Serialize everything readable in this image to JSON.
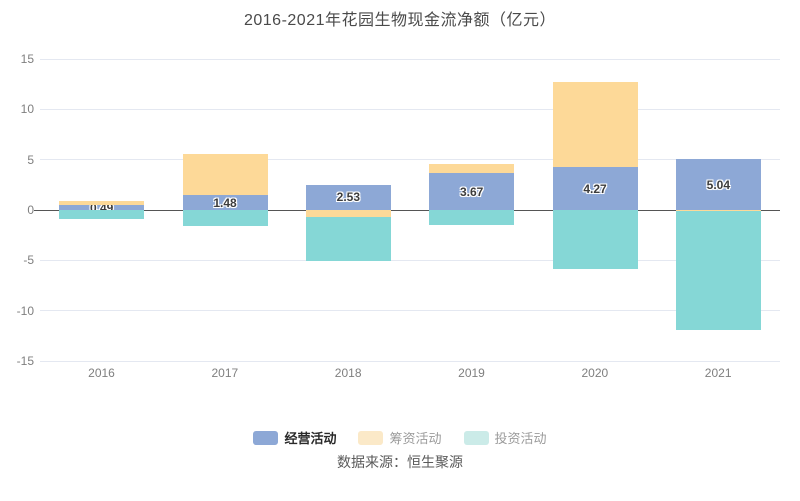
{
  "title": "2016-2021年花园生物现金流净额（亿元）",
  "source": "数据来源：恒生聚源",
  "legend": {
    "items": [
      {
        "key": "operating",
        "label": "经营活动",
        "swatch_color": "#8da8d6",
        "active": true
      },
      {
        "key": "financing",
        "label": "筹资活动",
        "swatch_color": "#fbe9c8",
        "active": false
      },
      {
        "key": "investing",
        "label": "投资活动",
        "swatch_color": "#cbebe8",
        "active": false
      }
    ]
  },
  "chart_data": {
    "type": "bar",
    "stacked": true,
    "title": "2016-2021年花园生物现金流净额（亿元）",
    "categories": [
      "2016",
      "2017",
      "2018",
      "2019",
      "2020",
      "2021"
    ],
    "series": [
      {
        "name": "经营活动",
        "color": "#8da8d6",
        "values": [
          0.49,
          1.48,
          2.53,
          3.67,
          4.27,
          5.04
        ],
        "labels": [
          "0.49",
          "1.48",
          "2.53",
          "3.67",
          "4.27",
          "5.04"
        ]
      },
      {
        "name": "筹资活动",
        "color": "#fdd998",
        "values": [
          0.4,
          4.1,
          -0.7,
          0.9,
          8.4,
          -0.1
        ]
      },
      {
        "name": "投资活动",
        "color": "#85d7d6",
        "values": [
          -0.9,
          -1.6,
          -4.4,
          -1.5,
          -5.9,
          -11.8
        ]
      }
    ],
    "xlabel": "",
    "ylabel": "",
    "ylim": [
      -15,
      15
    ],
    "yticks": [
      15,
      10,
      5,
      0,
      -5,
      -10,
      -15
    ],
    "grid": true,
    "legend_position": "bottom",
    "value_labels_series": "经营活动"
  }
}
